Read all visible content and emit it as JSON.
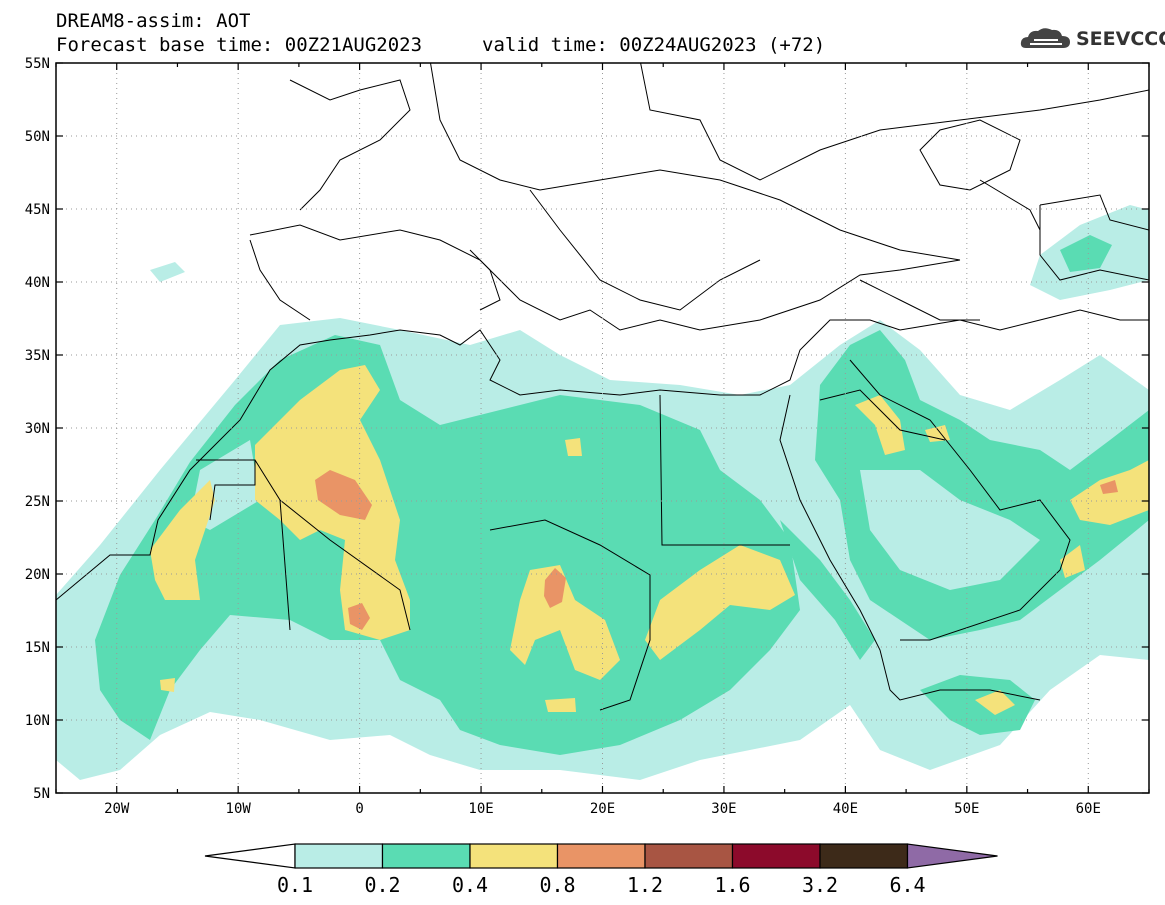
{
  "header": {
    "model_line": "DREAM8-assim: AOT",
    "base_line": "Forecast base time: 00Z21AUG2023",
    "valid_line": "valid time: 00Z24AUG2023 (+72)"
  },
  "logo": {
    "text": "SEEVCCC",
    "icon": "cloud-icon"
  },
  "map": {
    "lat_labels": [
      "55N",
      "50N",
      "45N",
      "40N",
      "35N",
      "30N",
      "25N",
      "20N",
      "15N",
      "10N",
      "5N"
    ],
    "lon_labels": [
      "20W",
      "10W",
      "0",
      "10E",
      "20E",
      "30E",
      "40E",
      "50E",
      "60E"
    ],
    "lat_range": [
      5,
      55
    ],
    "lon_range": [
      -25,
      65
    ],
    "gridlines": "dotted"
  },
  "colorbar": {
    "colors": [
      "#ffffff",
      "#b9ede6",
      "#5adcb3",
      "#f4e27b",
      "#e99466",
      "#a85543",
      "#8c0a2b",
      "#3d2a19",
      "#8f6aa6"
    ],
    "labels": [
      "0.1",
      "0.2",
      "0.4",
      "0.8",
      "1.2",
      "1.6",
      "3.2",
      "6.4"
    ]
  }
}
